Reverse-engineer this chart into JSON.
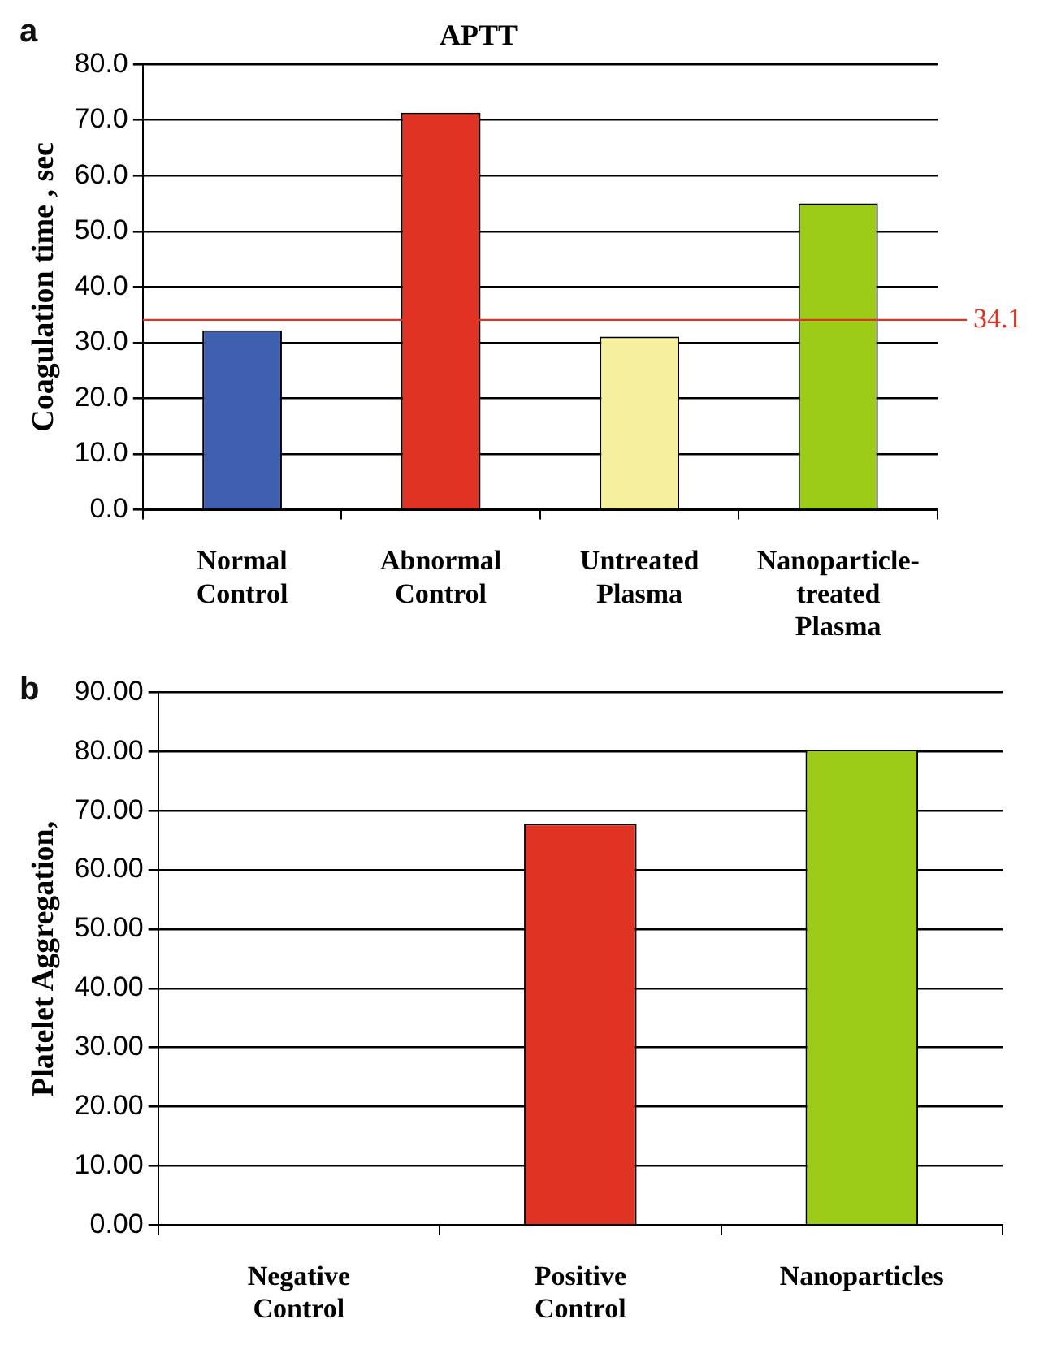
{
  "chart_data": [
    {
      "type": "bar",
      "title": "APTT",
      "ylabel": "Coagulation time , sec",
      "annotations": [
        "a"
      ],
      "categories": [
        "Normal Control",
        "Abnormal Control",
        "Untreated Plasma",
        "Nanoparticle-treated Plasma"
      ],
      "values": [
        32.2,
        71.3,
        31.1,
        55.0
      ],
      "colors": [
        "#3f5fb0",
        "#e03324",
        "#f6ef9e",
        "#9ccc18"
      ],
      "ylim": [
        0,
        80
      ],
      "yticks": [
        {
          "value": 0,
          "label": "0.0"
        },
        {
          "value": 10,
          "label": "10.0"
        },
        {
          "value": 20,
          "label": "20.0"
        },
        {
          "value": 30,
          "label": "30.0"
        },
        {
          "value": 40,
          "label": "40.0"
        },
        {
          "value": 50,
          "label": "50.0"
        },
        {
          "value": 60,
          "label": "60.0"
        },
        {
          "value": 70,
          "label": "70.0"
        },
        {
          "value": 80,
          "label": "80.0"
        }
      ],
      "grid": "y",
      "legend": false,
      "ref_lines": [
        {
          "axis": "y",
          "value": 34.1,
          "label": "34.1",
          "color": "#e03324"
        }
      ]
    },
    {
      "type": "bar",
      "ylabel": "Platelet Aggregation,",
      "annotations": [
        "b"
      ],
      "categories": [
        "Negative Control",
        "Positive Control",
        "Nanoparticles"
      ],
      "values": [
        0,
        67.8,
        80.3
      ],
      "colors": [
        "#3f5fb0",
        "#e03324",
        "#9ccc18"
      ],
      "ylim": [
        0,
        90
      ],
      "yticks": [
        {
          "value": 0,
          "label": "0.00"
        },
        {
          "value": 10,
          "label": "10.00"
        },
        {
          "value": 20,
          "label": "20.00"
        },
        {
          "value": 30,
          "label": "30.00"
        },
        {
          "value": 40,
          "label": "40.00"
        },
        {
          "value": 50,
          "label": "50.00"
        },
        {
          "value": 60,
          "label": "60.00"
        },
        {
          "value": 70,
          "label": "70.00"
        },
        {
          "value": 80,
          "label": "80.00"
        },
        {
          "value": 90,
          "label": "90.00"
        }
      ],
      "grid": "y",
      "legend": false
    }
  ]
}
